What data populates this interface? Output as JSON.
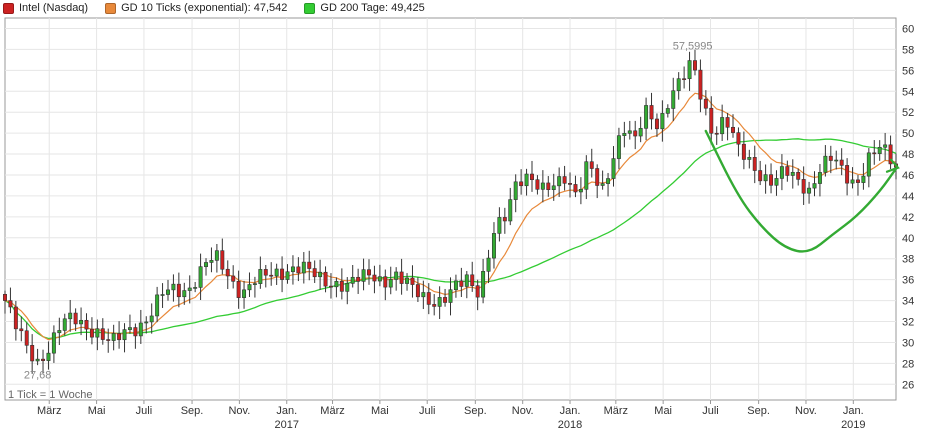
{
  "legend": {
    "items": [
      {
        "label": "Intel (Nasdaq)",
        "color": "#cc2222"
      },
      {
        "label": "GD 10 Ticks (exponential): 47,542",
        "color": "#e8893a"
      },
      {
        "label": "GD 200 Tage: 49,425",
        "color": "#33cc33"
      }
    ]
  },
  "footnote": "1 Tick = 1 Woche",
  "chart_data": {
    "type": "candlestick",
    "title": "",
    "colors": {
      "up": "#33aa33",
      "down": "#cc2222",
      "ema": "#e8893a",
      "sma": "#33cc33",
      "annotation": "#33aa33"
    },
    "y_axis": {
      "position": "right",
      "ticks": [
        26,
        28,
        30,
        32,
        34,
        36,
        38,
        40,
        42,
        44,
        46,
        48,
        50,
        52,
        54,
        56,
        58,
        60
      ],
      "range": [
        24.5,
        61
      ],
      "grid": true
    },
    "x_axis": {
      "start_date": "2016-01-04",
      "end_date": "2019-02-25",
      "month_labels": [
        {
          "date": "2016-03-01",
          "label": "März",
          "year": ""
        },
        {
          "date": "2016-05-01",
          "label": "Mai",
          "year": ""
        },
        {
          "date": "2016-07-01",
          "label": "Juli",
          "year": ""
        },
        {
          "date": "2016-09-01",
          "label": "Sep.",
          "year": ""
        },
        {
          "date": "2016-11-01",
          "label": "Nov.",
          "year": ""
        },
        {
          "date": "2017-01-01",
          "label": "Jan.",
          "year": "2017"
        },
        {
          "date": "2017-03-01",
          "label": "März",
          "year": ""
        },
        {
          "date": "2017-05-01",
          "label": "Mai",
          "year": ""
        },
        {
          "date": "2017-07-01",
          "label": "Juli",
          "year": ""
        },
        {
          "date": "2017-09-01",
          "label": "Sep.",
          "year": ""
        },
        {
          "date": "2017-11-01",
          "label": "Nov.",
          "year": ""
        },
        {
          "date": "2018-01-01",
          "label": "Jan.",
          "year": "2018"
        },
        {
          "date": "2018-03-01",
          "label": "März",
          "year": ""
        },
        {
          "date": "2018-05-01",
          "label": "Mai",
          "year": ""
        },
        {
          "date": "2018-07-01",
          "label": "Juli",
          "year": ""
        },
        {
          "date": "2018-09-01",
          "label": "Sep.",
          "year": ""
        },
        {
          "date": "2018-11-01",
          "label": "Nov.",
          "year": ""
        },
        {
          "date": "2019-01-01",
          "label": "Jan.",
          "year": "2019"
        }
      ]
    },
    "series": [
      {
        "name": "Intel (Nasdaq)",
        "type": "candlestick",
        "frequency": "weekly",
        "close_path": [
          [
            "2016-01-04",
            34.0
          ],
          [
            "2016-01-18",
            31.5
          ],
          [
            "2016-02-01",
            29.5
          ],
          [
            "2016-02-15",
            28.2
          ],
          [
            "2016-03-01",
            29.5
          ],
          [
            "2016-03-15",
            31.5
          ],
          [
            "2016-04-01",
            32.4
          ],
          [
            "2016-04-15",
            31.7
          ],
          [
            "2016-05-01",
            31.0
          ],
          [
            "2016-05-20",
            29.8
          ],
          [
            "2016-06-10",
            31.3
          ],
          [
            "2016-06-25",
            31.6
          ],
          [
            "2016-07-08",
            32.4
          ],
          [
            "2016-07-25",
            34.6
          ],
          [
            "2016-08-10",
            35.2
          ],
          [
            "2016-08-25",
            35.0
          ],
          [
            "2016-09-08",
            36.1
          ],
          [
            "2016-09-20",
            37.6
          ],
          [
            "2016-10-05",
            38.1
          ],
          [
            "2016-10-20",
            36.2
          ],
          [
            "2016-11-05",
            34.6
          ],
          [
            "2016-11-20",
            35.7
          ],
          [
            "2016-12-05",
            36.5
          ],
          [
            "2016-12-20",
            36.8
          ],
          [
            "2017-01-05",
            36.9
          ],
          [
            "2017-01-20",
            37.0
          ],
          [
            "2017-02-05",
            36.6
          ],
          [
            "2017-02-20",
            36.0
          ],
          [
            "2017-03-05",
            35.6
          ],
          [
            "2017-03-20",
            35.2
          ],
          [
            "2017-04-05",
            36.2
          ],
          [
            "2017-04-20",
            36.8
          ],
          [
            "2017-05-05",
            35.8
          ],
          [
            "2017-05-20",
            36.1
          ],
          [
            "2017-06-05",
            35.6
          ],
          [
            "2017-06-20",
            35.0
          ],
          [
            "2017-07-05",
            34.0
          ],
          [
            "2017-07-20",
            33.6
          ],
          [
            "2017-08-05",
            35.1
          ],
          [
            "2017-08-20",
            36.4
          ],
          [
            "2017-09-05",
            35.0
          ],
          [
            "2017-09-15",
            37.3
          ],
          [
            "2017-09-25",
            40.3
          ],
          [
            "2017-10-10",
            42.0
          ],
          [
            "2017-10-25",
            45.8
          ],
          [
            "2017-11-10",
            46.0
          ],
          [
            "2017-11-25",
            44.3
          ],
          [
            "2017-12-10",
            44.8
          ],
          [
            "2017-12-25",
            46.0
          ],
          [
            "2018-01-10",
            44.2
          ],
          [
            "2018-01-25",
            47.2
          ],
          [
            "2018-02-10",
            44.0
          ],
          [
            "2018-02-25",
            47.6
          ],
          [
            "2018-03-10",
            51.0
          ],
          [
            "2018-03-25",
            49.2
          ],
          [
            "2018-04-10",
            52.0
          ],
          [
            "2018-04-25",
            50.6
          ],
          [
            "2018-05-10",
            53.8
          ],
          [
            "2018-05-25",
            55.2
          ],
          [
            "2018-06-08",
            56.6
          ],
          [
            "2018-06-20",
            53.0
          ],
          [
            "2018-07-05",
            50.0
          ],
          [
            "2018-07-20",
            51.6
          ],
          [
            "2018-08-05",
            48.4
          ],
          [
            "2018-08-20",
            47.2
          ],
          [
            "2018-09-05",
            46.0
          ],
          [
            "2018-09-20",
            45.4
          ],
          [
            "2018-10-05",
            46.3
          ],
          [
            "2018-10-20",
            45.5
          ],
          [
            "2018-11-05",
            44.6
          ],
          [
            "2018-11-20",
            46.8
          ],
          [
            "2018-12-05",
            47.6
          ],
          [
            "2018-12-20",
            46.0
          ],
          [
            "2019-01-05",
            45.2
          ],
          [
            "2019-01-20",
            47.6
          ],
          [
            "2019-02-05",
            48.6
          ],
          [
            "2019-02-25",
            46.7
          ]
        ]
      },
      {
        "name": "GD 10 Ticks (exponential)",
        "type": "line",
        "value": 47.542
      },
      {
        "name": "GD 200 Tage",
        "type": "line",
        "value": 49.425
      }
    ],
    "annotations": [
      {
        "type": "text",
        "label": "57,5995",
        "date": "2018-06-08",
        "value": 57.5995
      },
      {
        "type": "text",
        "label": "27,68",
        "date": "2016-02-15",
        "value": 27.68
      },
      {
        "type": "freehand",
        "label": "",
        "description": "green hand-drawn curve from about Jul 2018 down to about Nov 2018 and back up to the last candle",
        "points": [
          [
            "2018-06-25",
            50.2
          ],
          [
            "2018-08-05",
            44.0
          ],
          [
            "2018-09-05",
            41.0
          ],
          [
            "2018-10-05",
            39.0
          ],
          [
            "2018-11-05",
            38.5
          ],
          [
            "2018-12-05",
            40.3
          ],
          [
            "2019-01-05",
            42.0
          ],
          [
            "2019-02-05",
            44.5
          ],
          [
            "2019-02-25",
            46.6
          ]
        ]
      }
    ]
  }
}
